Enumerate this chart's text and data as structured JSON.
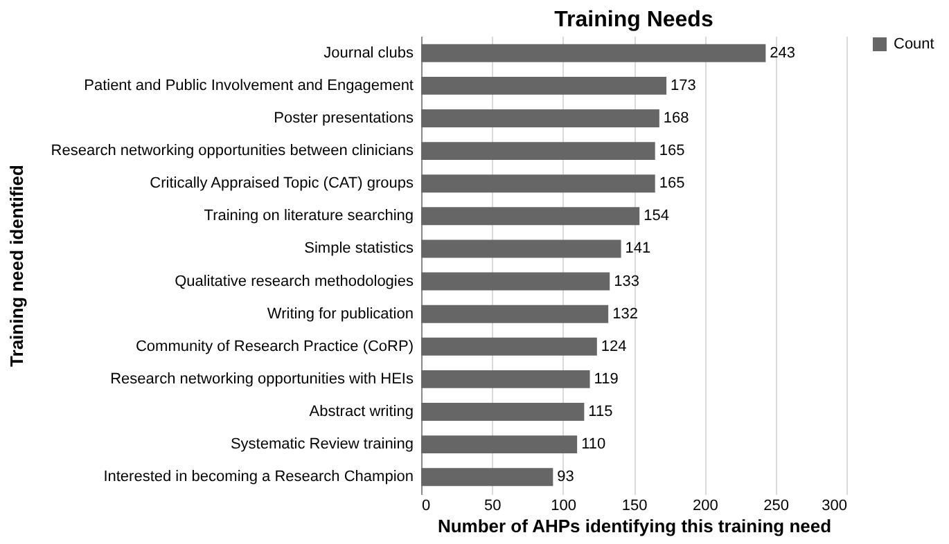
{
  "chart_data": {
    "type": "bar",
    "orientation": "horizontal",
    "title": "Training Needs",
    "xlabel": "Number of AHPs identifying this training need",
    "ylabel": "Training need identified",
    "categories": [
      "Journal clubs",
      "Patient and Public Involvement and Engagement",
      "Poster presentations",
      "Research networking opportunities between clinicians",
      "Critically Appraised Topic (CAT) groups",
      "Training on literature searching",
      "Simple statistics",
      "Qualitative research methodologies",
      "Writing for publication",
      "Community of Research Practice (CoRP)",
      "Research networking opportunities with HEIs",
      "Abstract writing",
      "Systematic Review training",
      "Interested in becoming a Research Champion"
    ],
    "series": [
      {
        "name": "Count",
        "color": "#666666",
        "values": [
          243,
          173,
          168,
          165,
          165,
          154,
          141,
          133,
          132,
          124,
          119,
          115,
          110,
          93
        ]
      }
    ],
    "xlim": [
      0,
      300
    ],
    "xticks": [
      0,
      50,
      100,
      150,
      200,
      250,
      300
    ],
    "grid": "x",
    "legend": "right",
    "data_labels": true
  }
}
